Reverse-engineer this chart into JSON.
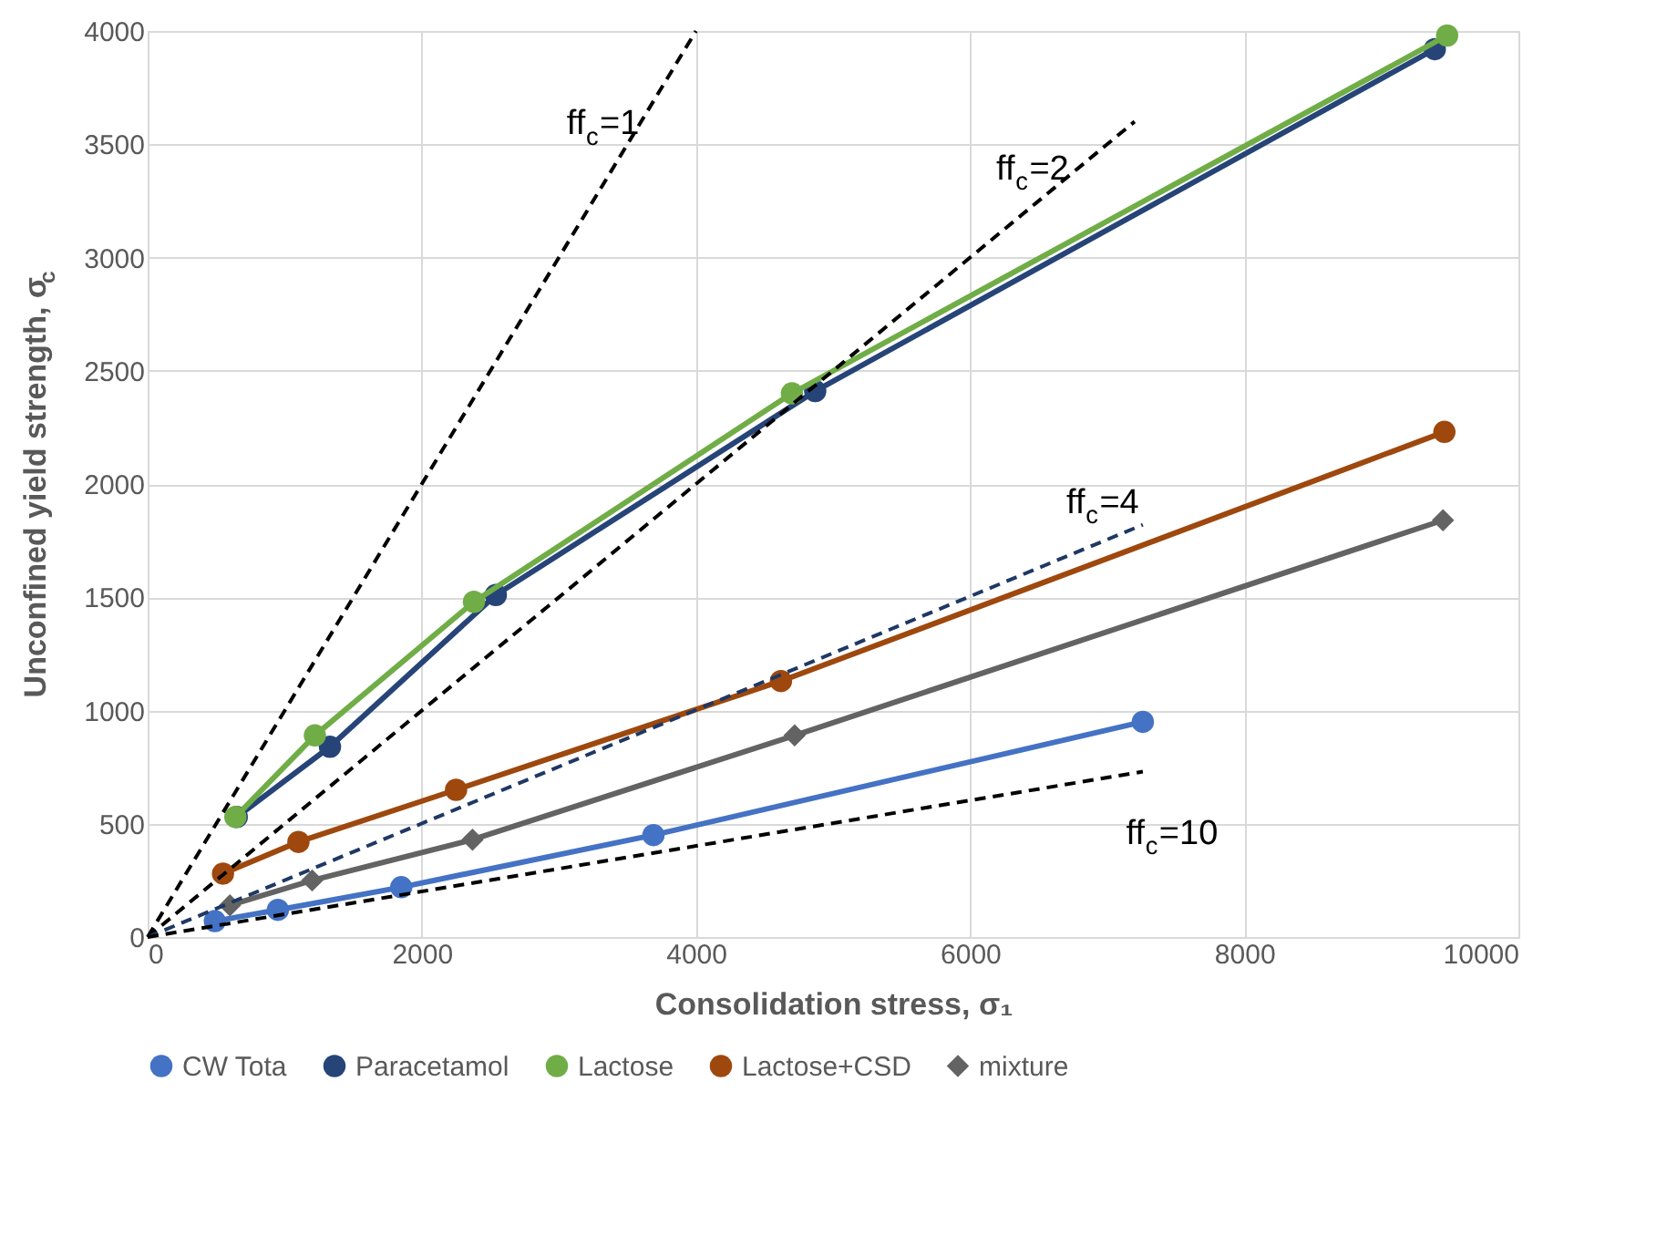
{
  "chart_data": {
    "type": "line",
    "xlabel": "Consolidation stress, σ₁",
    "ylabel": "Unconfined yield strength, σ$_{c}$",
    "xlim": [
      0,
      10000
    ],
    "xticks": [
      0,
      2000,
      4000,
      6000,
      8000,
      10000
    ],
    "ylim": [
      0,
      4000
    ],
    "yticks": [
      0,
      500,
      1000,
      1500,
      2000,
      2500,
      3000,
      3500,
      4000
    ],
    "grid": true,
    "legend": "bottom",
    "line_style": "solid",
    "series": [
      {
        "name": "CW Tota",
        "color": "#4472c4",
        "marker": "circle",
        "x": [
          490,
          950,
          1850,
          3690,
          7260
        ],
        "values": [
          70,
          120,
          220,
          450,
          950
        ]
      },
      {
        "name": "Paracetamol",
        "color": "#264478",
        "marker": "circle",
        "x": [
          650,
          1330,
          2540,
          4870,
          9390
        ],
        "values": [
          530,
          840,
          1510,
          2410,
          3920
        ]
      },
      {
        "name": "Lactose",
        "color": "#70ad47",
        "marker": "circle",
        "x": [
          640,
          1220,
          2380,
          4700,
          9480
        ],
        "values": [
          530,
          890,
          1480,
          2400,
          3980
        ]
      },
      {
        "name": "Lactose+CSD",
        "color": "#9e480e",
        "marker": "circle",
        "x": [
          550,
          1100,
          2250,
          4620,
          9460
        ],
        "values": [
          280,
          420,
          650,
          1130,
          2230
        ]
      },
      {
        "name": "mixture",
        "color": "#636363",
        "marker": "diamond",
        "x": [
          600,
          1200,
          2370,
          4720,
          9450
        ],
        "values": [
          140,
          250,
          430,
          890,
          1840
        ]
      },
      {
        "name": "ff$_{c}$=1",
        "color": "#000000",
        "marker": "none",
        "line_style": "dashed",
        "x": [
          0,
          4000
        ],
        "values": [
          0,
          4000
        ]
      },
      {
        "name": "ff$_{c}$=2",
        "color": "#000000",
        "marker": "none",
        "line_style": "dashed",
        "x": [
          0,
          7200
        ],
        "values": [
          0,
          3600
        ]
      },
      {
        "name": "ff$_{c}$=4",
        "color": "#1f3864",
        "marker": "none",
        "line_style": "dashed",
        "x": [
          0,
          7260
        ],
        "values": [
          0,
          1820
        ]
      },
      {
        "name": "ff$_{c}$=10",
        "color": "#000000",
        "marker": "none",
        "line_style": "dashed",
        "x": [
          0,
          7260
        ],
        "values": [
          0,
          730
        ]
      }
    ]
  }
}
